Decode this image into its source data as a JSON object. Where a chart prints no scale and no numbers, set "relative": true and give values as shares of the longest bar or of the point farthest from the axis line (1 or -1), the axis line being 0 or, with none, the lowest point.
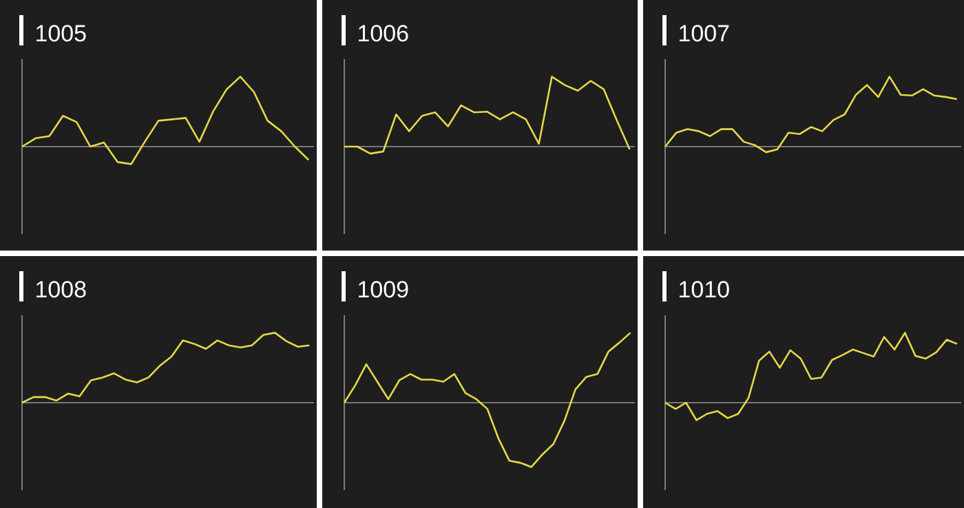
{
  "chart_data": [
    {
      "type": "line",
      "title": "1005",
      "relative": true,
      "categories": [
        null,
        null,
        null,
        null,
        null,
        null,
        null,
        null,
        null,
        null,
        null,
        null,
        null,
        null,
        null,
        null,
        null,
        null,
        null,
        null,
        null,
        null
      ],
      "series": [
        {
          "color": "#e6d848",
          "values": [
            0,
            0.12,
            0.15,
            0.44,
            0.35,
            0,
            0.06,
            -0.22,
            -0.25,
            0.07,
            0.37,
            0.39,
            0.41,
            0.07,
            0.5,
            0.82,
            1,
            0.78,
            0.37,
            0.22,
            0,
            -0.19
          ]
        }
      ]
    },
    {
      "type": "line",
      "title": "1006",
      "relative": true,
      "categories": [
        null,
        null,
        null,
        null,
        null,
        null,
        null,
        null,
        null,
        null,
        null,
        null,
        null,
        null,
        null,
        null,
        null,
        null,
        null,
        null,
        null,
        null,
        null
      ],
      "series": [
        {
          "color": "#e6d848",
          "values": [
            0,
            0,
            -0.1,
            -0.07,
            0.46,
            0.22,
            0.44,
            0.49,
            0.29,
            0.59,
            0.49,
            0.5,
            0.39,
            0.49,
            0.39,
            0.04,
            1,
            0.88,
            0.8,
            0.94,
            0.82,
            0.38,
            -0.04
          ]
        }
      ]
    },
    {
      "type": "line",
      "title": "1007",
      "relative": true,
      "categories": [
        null,
        null,
        null,
        null,
        null,
        null,
        null,
        null,
        null,
        null,
        null,
        null,
        null,
        null,
        null,
        null,
        null,
        null,
        null,
        null,
        null,
        null,
        null,
        null,
        null,
        null,
        null
      ],
      "series": [
        {
          "color": "#e6d848",
          "values": [
            0,
            0.2,
            0.25,
            0.22,
            0.15,
            0.25,
            0.25,
            0.07,
            0.02,
            -0.08,
            -0.04,
            0.2,
            0.18,
            0.28,
            0.22,
            0.38,
            0.46,
            0.74,
            0.88,
            0.71,
            1,
            0.74,
            0.73,
            0.82,
            0.73,
            0.71,
            0.68
          ]
        }
      ]
    },
    {
      "type": "line",
      "title": "1008",
      "relative": true,
      "categories": [
        null,
        null,
        null,
        null,
        null,
        null,
        null,
        null,
        null,
        null,
        null,
        null,
        null,
        null,
        null,
        null,
        null,
        null,
        null,
        null,
        null,
        null,
        null,
        null,
        null,
        null
      ],
      "series": [
        {
          "color": "#e6d848",
          "values": [
            0,
            0.08,
            0.08,
            0.03,
            0.13,
            0.09,
            0.32,
            0.36,
            0.42,
            0.33,
            0.29,
            0.36,
            0.53,
            0.66,
            0.89,
            0.84,
            0.77,
            0.89,
            0.82,
            0.79,
            0.82,
            0.97,
            1,
            0.88,
            0.8,
            0.82
          ]
        }
      ]
    },
    {
      "type": "line",
      "title": "1009",
      "relative": true,
      "categories": [
        null,
        null,
        null,
        null,
        null,
        null,
        null,
        null,
        null,
        null,
        null,
        null,
        null,
        null,
        null,
        null,
        null,
        null,
        null,
        null,
        null,
        null,
        null,
        null,
        null,
        null,
        null
      ],
      "series": [
        {
          "color": "#e6d848",
          "values": [
            0,
            0.25,
            0.55,
            0.3,
            0.05,
            0.32,
            0.41,
            0.33,
            0.33,
            0.3,
            0.41,
            0.14,
            0.05,
            -0.09,
            -0.51,
            -0.83,
            -0.86,
            -0.92,
            -0.74,
            -0.59,
            -0.26,
            0.19,
            0.37,
            0.41,
            0.73,
            0.86,
            1
          ]
        }
      ]
    },
    {
      "type": "line",
      "title": "1010",
      "relative": true,
      "categories": [
        null,
        null,
        null,
        null,
        null,
        null,
        null,
        null,
        null,
        null,
        null,
        null,
        null,
        null,
        null,
        null,
        null,
        null,
        null,
        null,
        null,
        null,
        null,
        null,
        null,
        null,
        null,
        null,
        null
      ],
      "series": [
        {
          "color": "#e6d848",
          "values": [
            0,
            -0.09,
            0,
            -0.25,
            -0.16,
            -0.12,
            -0.22,
            -0.16,
            0.07,
            0.6,
            0.73,
            0.5,
            0.75,
            0.63,
            0.34,
            0.36,
            0.61,
            0.68,
            0.76,
            0.71,
            0.66,
            0.94,
            0.76,
            1,
            0.67,
            0.63,
            0.72,
            0.9,
            0.84
          ]
        }
      ]
    }
  ]
}
